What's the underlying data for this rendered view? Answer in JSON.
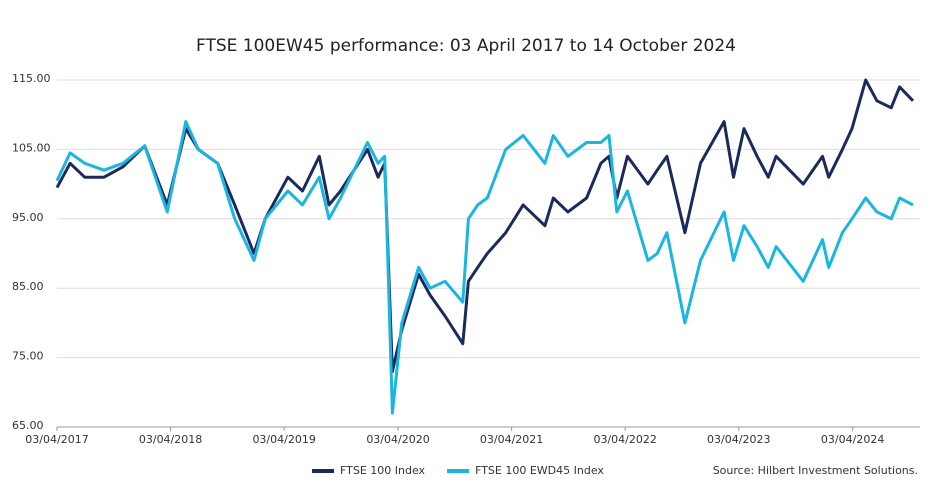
{
  "chart_data": {
    "type": "line",
    "title": "FTSE 100EW45 performance: 03 April 2017 to 14 October 2024",
    "source": "Source: Hilbert Investment Solutions.",
    "x": [
      "2017-04-03",
      "2017-05-15",
      "2017-07-01",
      "2017-09-01",
      "2017-11-01",
      "2018-01-10",
      "2018-03-23",
      "2018-05-22",
      "2018-07-01",
      "2018-09-01",
      "2018-10-26",
      "2018-12-27",
      "2019-02-01",
      "2019-04-15",
      "2019-06-01",
      "2019-07-25",
      "2019-08-25",
      "2019-10-01",
      "2019-12-27",
      "2020-01-30",
      "2020-02-20",
      "2020-03-16",
      "2020-04-15",
      "2020-06-08",
      "2020-07-15",
      "2020-09-01",
      "2020-10-28",
      "2020-11-15",
      "2020-12-15",
      "2021-01-15",
      "2021-03-15",
      "2021-05-10",
      "2021-07-19",
      "2021-08-15",
      "2021-10-01",
      "2021-11-30",
      "2022-01-15",
      "2022-02-10",
      "2022-03-07",
      "2022-04-10",
      "2022-06-15",
      "2022-07-15",
      "2022-08-15",
      "2022-10-12",
      "2022-12-01",
      "2023-02-15",
      "2023-03-17",
      "2023-04-20",
      "2023-06-01",
      "2023-07-07",
      "2023-08-01",
      "2023-10-27",
      "2023-12-28",
      "2024-01-17",
      "2024-03-01",
      "2024-04-01",
      "2024-05-15",
      "2024-06-20",
      "2024-08-05",
      "2024-09-01",
      "2024-10-14"
    ],
    "series": [
      {
        "name": "FTSE 100 Index",
        "color": "#1b2a5c",
        "values": [
          99.5,
          103,
          101,
          101,
          102.5,
          105.5,
          97,
          108,
          105,
          103,
          97,
          90,
          95,
          101,
          99,
          104,
          97,
          99,
          105,
          101,
          103,
          73,
          79,
          87,
          84,
          81,
          77,
          86,
          88,
          90,
          93,
          97,
          94,
          98,
          96,
          98,
          103,
          104,
          98,
          104,
          100,
          102,
          104,
          93,
          103,
          109,
          101,
          108,
          104,
          101,
          104,
          100,
          104,
          101,
          105,
          108,
          115,
          112,
          111,
          114,
          112
        ]
      },
      {
        "name": "FTSE 100 EWD45 Index",
        "color": "#1ab6e0",
        "values": [
          100.5,
          104.5,
          103,
          102,
          103,
          105.5,
          96,
          109,
          105,
          103,
          95,
          89,
          95,
          99,
          97,
          101,
          95,
          98,
          106,
          103,
          104,
          67,
          80,
          88,
          85,
          86,
          83,
          95,
          97,
          98,
          105,
          107,
          103,
          107,
          104,
          106,
          106,
          107,
          96,
          99,
          89,
          90,
          93,
          80,
          89,
          96,
          89,
          94,
          91,
          88,
          91,
          86,
          92,
          88,
          93,
          95,
          98,
          96,
          95,
          98,
          97
        ]
      }
    ],
    "xlim": [
      "2017-04-03",
      "2024-10-14"
    ],
    "xticks": [
      {
        "value": "2017-04-03",
        "label": "03/04/2017"
      },
      {
        "value": "2018-04-03",
        "label": "03/04/2018"
      },
      {
        "value": "2019-04-03",
        "label": "03/04/2019"
      },
      {
        "value": "2020-04-03",
        "label": "03/04/2020"
      },
      {
        "value": "2021-04-03",
        "label": "03/04/2021"
      },
      {
        "value": "2022-04-03",
        "label": "03/04/2022"
      },
      {
        "value": "2023-04-03",
        "label": "03/04/2023"
      },
      {
        "value": "2024-04-03",
        "label": "03/04/2024"
      }
    ],
    "ylim": [
      65,
      115
    ],
    "yticks": [
      {
        "value": 65,
        "label": "65.00"
      },
      {
        "value": 75,
        "label": "75.00"
      },
      {
        "value": 85,
        "label": "85.00"
      },
      {
        "value": 95,
        "label": "95.00"
      },
      {
        "value": 105,
        "label": "105.00"
      },
      {
        "value": 115,
        "label": "115.00"
      }
    ],
    "grid": true
  }
}
